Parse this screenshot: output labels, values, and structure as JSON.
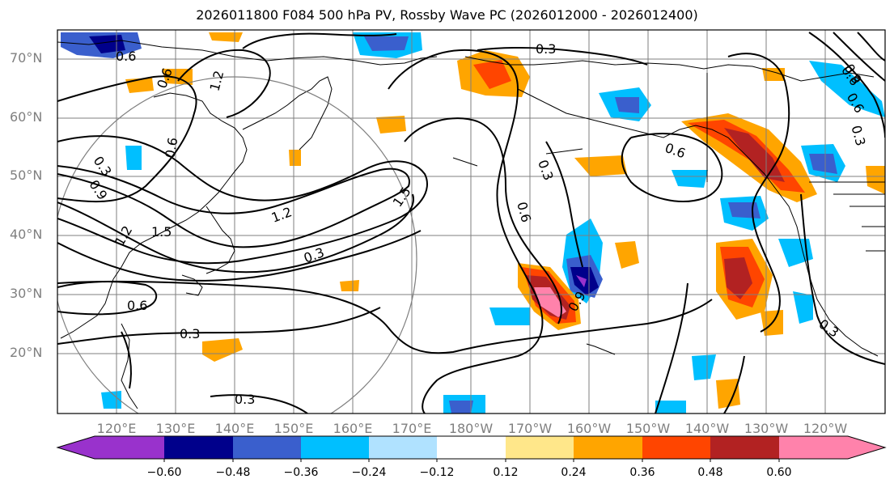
{
  "title": "2026011800 F084 500 hPa PV, Rossby Wave PC (2026012000 - 2026012400)",
  "lat_labels": [
    "70°N",
    "60°N",
    "50°N",
    "40°N",
    "30°N",
    "20°N"
  ],
  "lon_labels": [
    "120°E",
    "130°E",
    "140°E",
    "150°E",
    "160°E",
    "170°E",
    "180°W",
    "170°W",
    "160°W",
    "150°W",
    "140°W",
    "130°W",
    "120°W"
  ],
  "colorbar": {
    "ticks": [
      "−0.60",
      "−0.48",
      "−0.36",
      "−0.24",
      "−0.12",
      "0.12",
      "0.24",
      "0.36",
      "0.48",
      "0.60"
    ],
    "colors": [
      "#9932cc",
      "#00008b",
      "#3a5fcd",
      "#00bfff",
      "#b0e2ff",
      "#ffffff",
      "#ffe78a",
      "#ffa500",
      "#ff4500",
      "#b22222",
      "#ff82ab"
    ]
  },
  "contour_labels": [
    "0.6",
    "0.6",
    "1.2",
    "0.6",
    "0.3",
    "0.9",
    "1.2",
    "1.5",
    "1.5",
    "1.2",
    "0.3",
    "0.6",
    "0.3",
    "0.3",
    "0.3",
    "0.6",
    "0.3",
    "0.9",
    "0.6",
    "0.6",
    "0.3",
    "0.3",
    "0.9",
    "0.6"
  ],
  "colors": {
    "land": "#000000",
    "grid": "#7f7f7f",
    "contour": "#000000"
  }
}
